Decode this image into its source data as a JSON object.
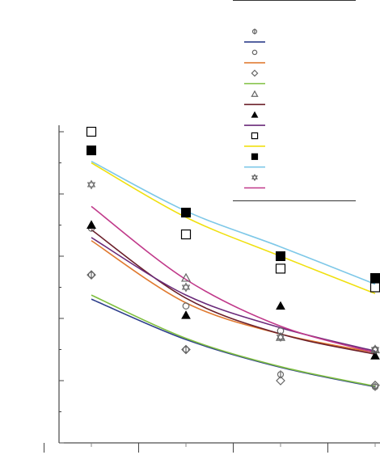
{
  "chart_data": {
    "type": "scatter",
    "x": [
      1,
      2,
      3,
      4
    ],
    "xlim": [
      0.5,
      4.5
    ],
    "ylim": [
      0,
      10
    ],
    "grid": false,
    "legend_position": "top-right",
    "title": "",
    "xlabel": "",
    "ylabel": "",
    "series": [
      {
        "kind": "points",
        "marker": "plus",
        "color": "#666666",
        "points": [
          [
            1,
            5.4
          ],
          [
            2,
            3.0
          ],
          [
            3,
            2.2
          ],
          [
            4,
            1.8
          ]
        ]
      },
      {
        "kind": "fit",
        "color": "#2e3f8c",
        "curve": [
          [
            1,
            4.62
          ],
          [
            2,
            3.32
          ],
          [
            3,
            2.43
          ],
          [
            4,
            1.8
          ]
        ]
      },
      {
        "kind": "points",
        "marker": "circle",
        "color": "#666666",
        "points": [
          [
            1,
            6.9
          ],
          [
            2,
            4.4
          ],
          [
            3,
            3.6
          ],
          [
            4,
            3.0
          ]
        ]
      },
      {
        "kind": "fit",
        "color": "#e07a30",
        "curve": [
          [
            1,
            6.5
          ],
          [
            2,
            4.5
          ],
          [
            3,
            3.5
          ],
          [
            4,
            2.9
          ]
        ]
      },
      {
        "kind": "points",
        "marker": "diamond",
        "color": "#666666",
        "points": [
          [
            1,
            5.4
          ],
          [
            2,
            3.0
          ],
          [
            3,
            2.0
          ],
          [
            4,
            1.85
          ]
        ]
      },
      {
        "kind": "fit",
        "color": "#7fbf3f",
        "curve": [
          [
            1,
            4.75
          ],
          [
            2,
            3.36
          ],
          [
            3,
            2.45
          ],
          [
            4,
            1.82
          ]
        ]
      },
      {
        "kind": "points",
        "marker": "triangle-open",
        "color": "#666666",
        "points": [
          [
            1,
            7.0
          ],
          [
            2,
            5.3
          ],
          [
            3,
            3.4
          ],
          [
            4,
            3.0
          ]
        ]
      },
      {
        "kind": "fit",
        "color": "#6b1f2a",
        "curve": [
          [
            1,
            6.85
          ],
          [
            2,
            4.65
          ],
          [
            3,
            3.5
          ],
          [
            4,
            2.85
          ]
        ]
      },
      {
        "kind": "points",
        "marker": "triangle-filled",
        "color": "#000000",
        "points": [
          [
            1,
            7.0
          ],
          [
            2,
            4.1
          ],
          [
            3,
            4.4
          ],
          [
            4,
            2.8
          ]
        ]
      },
      {
        "kind": "fit",
        "color": "#6a2a7a",
        "curve": [
          [
            1,
            6.6
          ],
          [
            2,
            4.75
          ],
          [
            3,
            3.7
          ],
          [
            4,
            2.95
          ]
        ]
      },
      {
        "kind": "points",
        "marker": "square-open",
        "color": "#000000",
        "points": [
          [
            1,
            10.0
          ],
          [
            2,
            6.7
          ],
          [
            3,
            5.6
          ],
          [
            4,
            5.0
          ]
        ]
      },
      {
        "kind": "fit",
        "color": "#f0e010",
        "curve": [
          [
            1,
            9.0
          ],
          [
            2,
            7.25
          ],
          [
            3,
            6.0
          ],
          [
            4,
            4.8
          ]
        ]
      },
      {
        "kind": "points",
        "marker": "square-filled",
        "color": "#000000",
        "points": [
          [
            1,
            9.4
          ],
          [
            2,
            7.4
          ],
          [
            3,
            6.0
          ],
          [
            4,
            5.3
          ]
        ]
      },
      {
        "kind": "fit",
        "color": "#7ec8e8",
        "curve": [
          [
            1,
            9.05
          ],
          [
            2,
            7.45
          ],
          [
            3,
            6.3
          ],
          [
            4,
            5.1
          ]
        ]
      },
      {
        "kind": "points",
        "marker": "star",
        "color": "#666666",
        "points": [
          [
            1,
            8.3
          ],
          [
            2,
            5.0
          ],
          [
            3,
            3.4
          ],
          [
            4,
            3.0
          ]
        ]
      },
      {
        "kind": "fit",
        "color": "#c0398a",
        "curve": [
          [
            1,
            7.6
          ],
          [
            2,
            5.25
          ],
          [
            3,
            3.75
          ],
          [
            4,
            2.9
          ]
        ]
      }
    ]
  }
}
